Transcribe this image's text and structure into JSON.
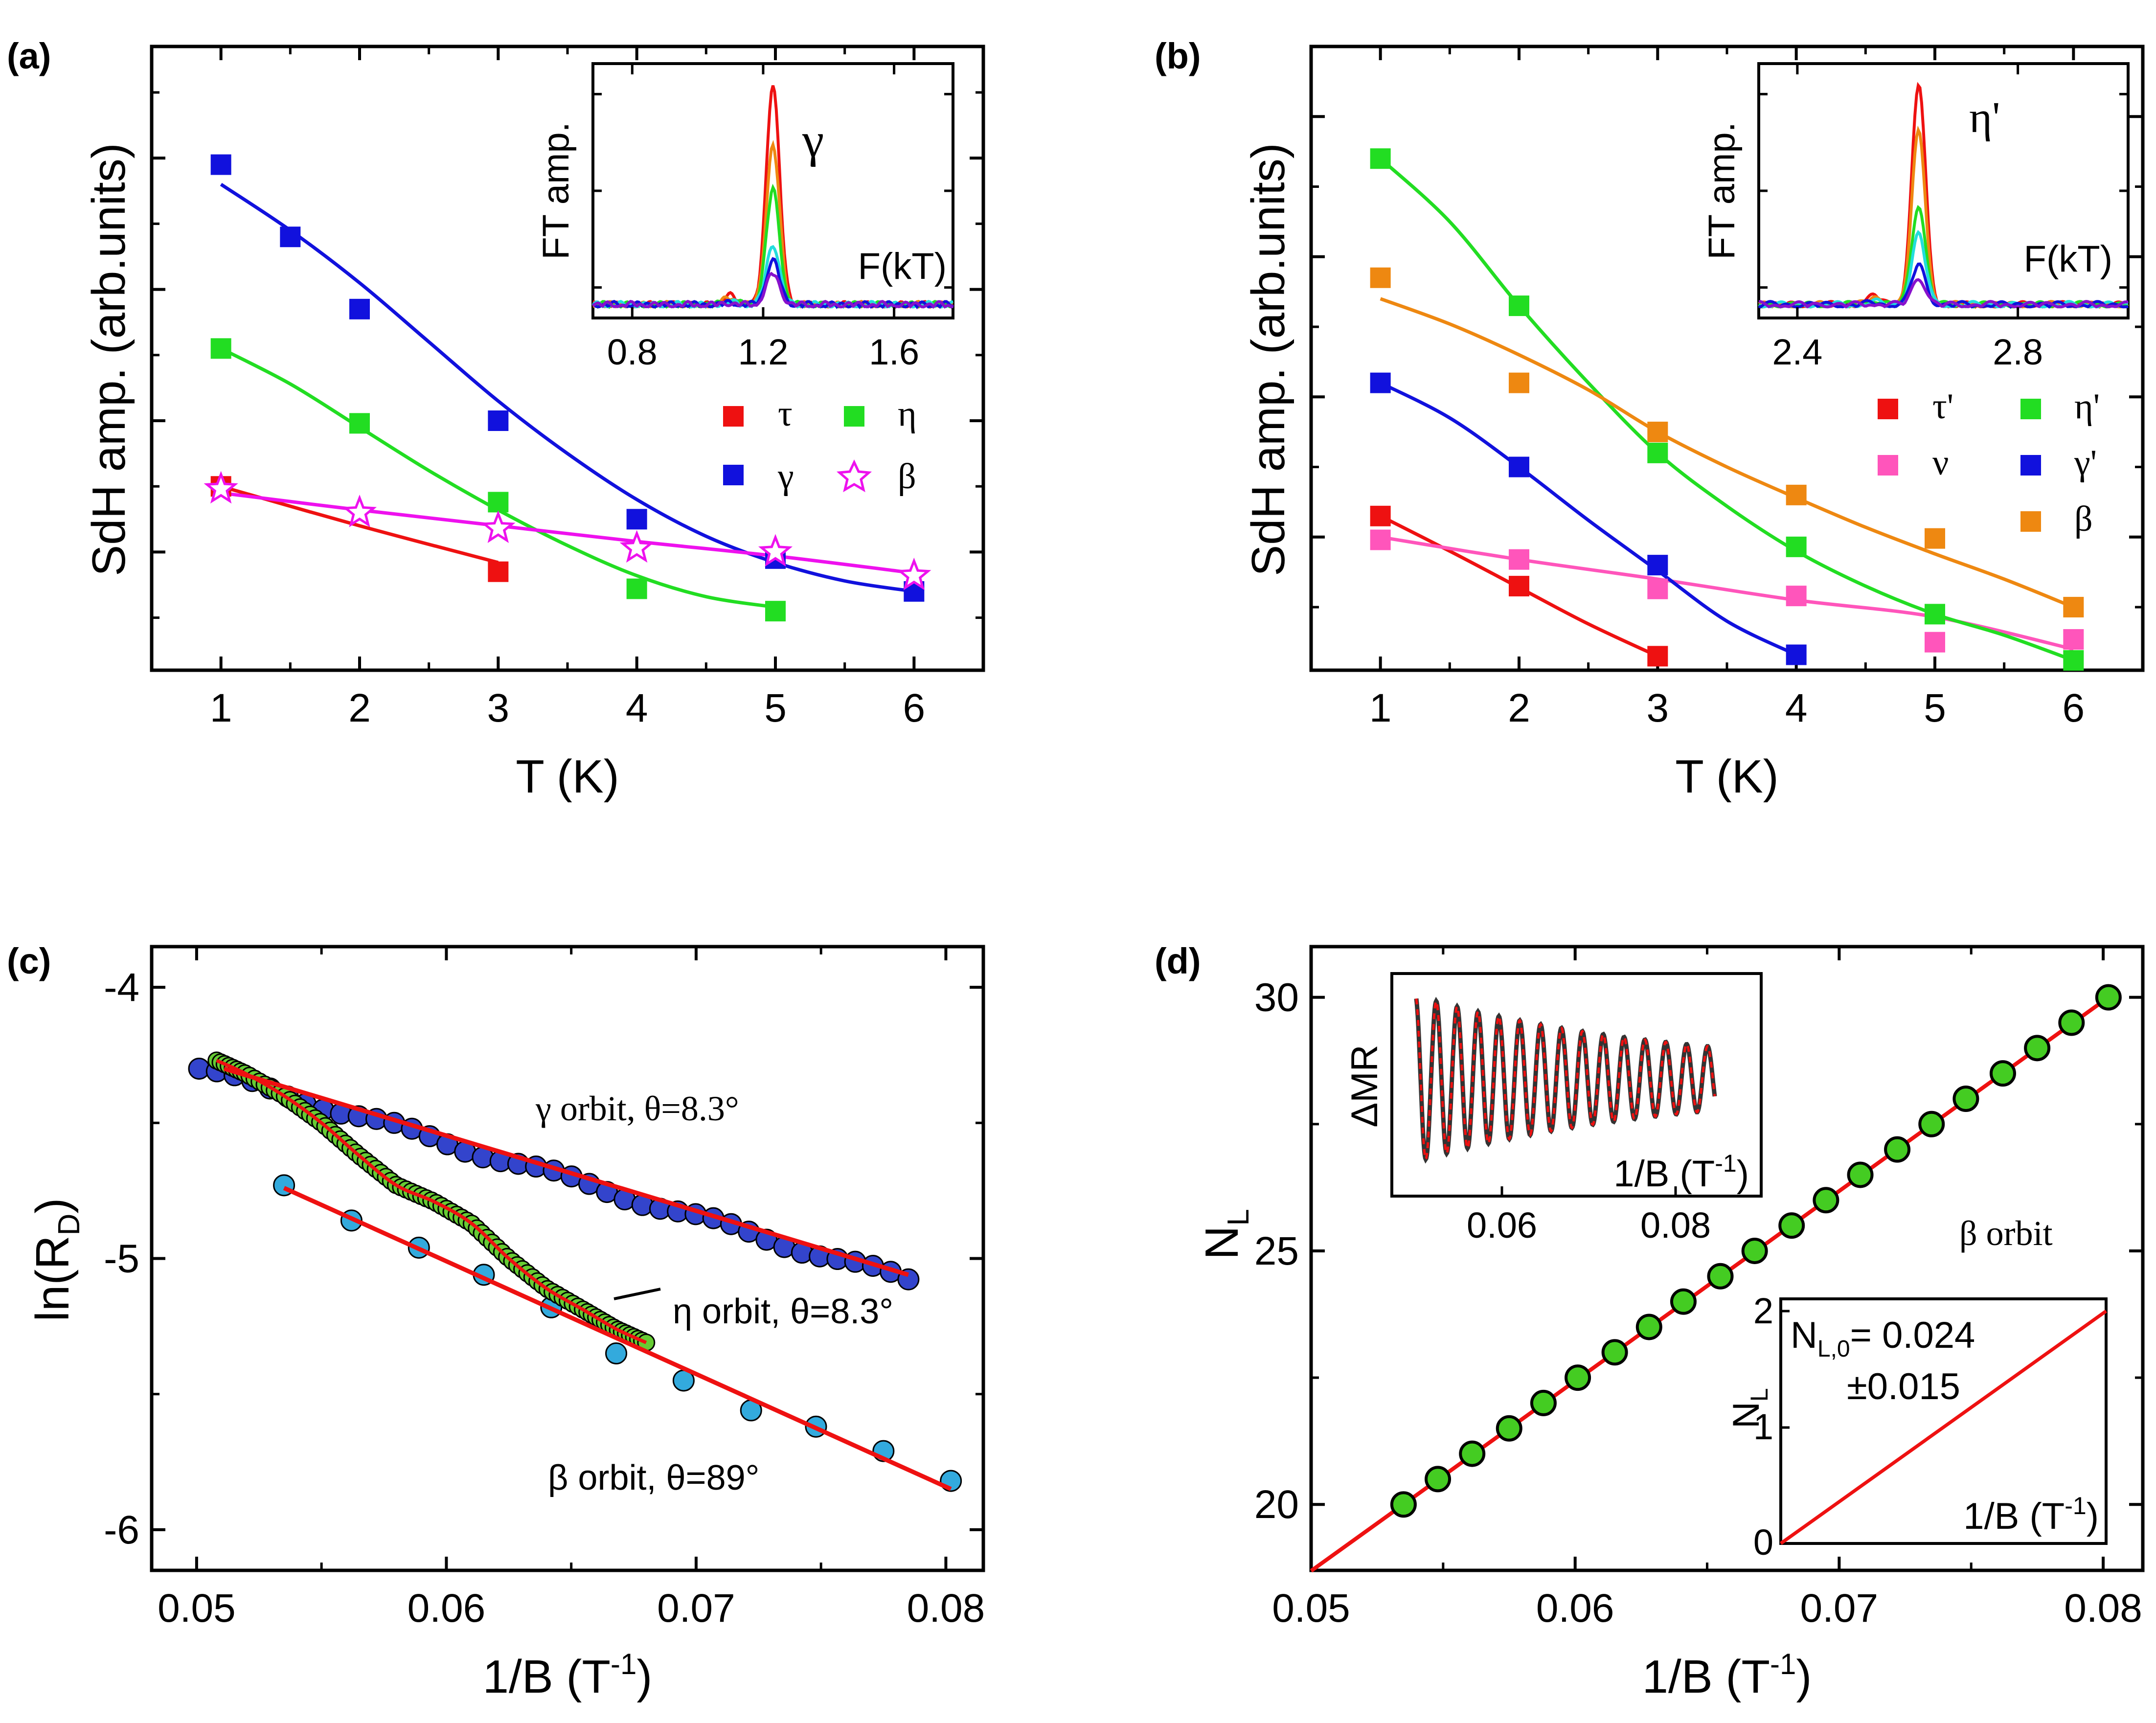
{
  "chart_data": [
    {
      "panel": "(a)",
      "type": "scatter",
      "xlabel": "T (K)",
      "ylabel": "SdH amp. (arb.units)",
      "xlim": [
        0.5,
        6.5
      ],
      "ylim": [
        0.1,
        4.85
      ],
      "xticks": [
        1,
        2,
        3,
        4,
        5,
        6
      ],
      "series": [
        {
          "name": "τ",
          "color": "#ee1111",
          "marker": "square",
          "x": [
            1,
            3
          ],
          "y": [
            1.5,
            0.85
          ],
          "fit": {
            "x": [
              1,
              2,
              3
            ],
            "y": [
              1.5,
              1.2,
              0.92
            ]
          }
        },
        {
          "name": "η",
          "color": "#22dd22",
          "marker": "square",
          "x": [
            1,
            2,
            3,
            4,
            5
          ],
          "y": [
            2.55,
            1.98,
            1.38,
            0.72,
            0.55
          ],
          "fit": {
            "x": [
              1,
              1.5,
              2,
              2.5,
              3,
              3.5,
              4,
              4.5,
              5
            ],
            "y": [
              2.55,
              2.28,
              1.95,
              1.62,
              1.32,
              1.05,
              0.82,
              0.66,
              0.58
            ]
          }
        },
        {
          "name": "γ",
          "color": "#1111dd",
          "marker": "square",
          "x": [
            1,
            1.5,
            2,
            3,
            4,
            5,
            6
          ],
          "y": [
            3.95,
            3.4,
            2.85,
            2.0,
            1.25,
            0.95,
            0.7
          ],
          "fit": {
            "x": [
              1,
              1.5,
              2,
              2.5,
              3,
              3.5,
              4,
              4.5,
              5,
              5.5,
              6
            ],
            "y": [
              3.8,
              3.45,
              3.05,
              2.6,
              2.15,
              1.75,
              1.4,
              1.12,
              0.92,
              0.78,
              0.7
            ]
          }
        },
        {
          "name": "β",
          "color": "#ee11ee",
          "marker": "star",
          "x": [
            1,
            2,
            3,
            4,
            5,
            6
          ],
          "y": [
            1.48,
            1.3,
            1.18,
            1.03,
            1.0,
            0.82
          ],
          "fit": {
            "x": [
              1,
              2,
              3,
              4,
              5,
              6
            ],
            "y": [
              1.45,
              1.32,
              1.2,
              1.08,
              0.97,
              0.84
            ]
          }
        }
      ],
      "inset": {
        "ylabel": "FT amp.",
        "xlabel": "F(kT)",
        "label": "γ",
        "xlim": [
          0.68,
          1.78
        ],
        "xticks": [
          0.8,
          1.2,
          1.6
        ],
        "ylim": [
          -0.05,
          1.1
        ],
        "peak_center": 1.23,
        "peak_heights": [
          1.0,
          0.72,
          0.52,
          0.27,
          0.2,
          0.14
        ],
        "colors": [
          "#ee1111",
          "#ee8811",
          "#22dd22",
          "#22dddd",
          "#1111dd",
          "#8811cc"
        ]
      }
    },
    {
      "panel": "(b)",
      "type": "scatter",
      "xlabel": "T (K)",
      "ylabel": "SdH amp. (arb.units)",
      "xlim": [
        0.5,
        6.5
      ],
      "ylim": [
        0.05,
        4.5
      ],
      "xticks": [
        1,
        2,
        3,
        4,
        5,
        6
      ],
      "series": [
        {
          "name": "τ'",
          "color": "#ee1111",
          "marker": "square",
          "x": [
            1,
            2,
            3
          ],
          "y": [
            1.15,
            0.65,
            0.15
          ],
          "fit": {
            "x": [
              1,
              1.5,
              2,
              2.5,
              3
            ],
            "y": [
              1.15,
              0.9,
              0.64,
              0.38,
              0.15
            ]
          }
        },
        {
          "name": "ν",
          "color": "#ff55bb",
          "marker": "square",
          "x": [
            1,
            2,
            3,
            4,
            5,
            6
          ],
          "y": [
            0.98,
            0.84,
            0.63,
            0.58,
            0.25,
            0.27
          ],
          "fit": {
            "x": [
              1,
              2,
              3,
              4,
              5,
              6
            ],
            "y": [
              1.0,
              0.84,
              0.7,
              0.55,
              0.43,
              0.2
            ]
          }
        },
        {
          "name": "η'",
          "color": "#22dd22",
          "marker": "square",
          "x": [
            1,
            2,
            3,
            4,
            5,
            6
          ],
          "y": [
            3.7,
            2.65,
            1.6,
            0.93,
            0.45,
            0.12
          ],
          "fit": {
            "x": [
              1,
              1.5,
              2,
              2.5,
              3,
              3.5,
              4,
              4.5,
              5,
              5.5,
              6
            ],
            "y": [
              3.7,
              3.25,
              2.65,
              2.1,
              1.6,
              1.22,
              0.9,
              0.65,
              0.45,
              0.3,
              0.12
            ]
          }
        },
        {
          "name": "γ'",
          "color": "#1111dd",
          "marker": "square",
          "x": [
            1,
            2,
            3,
            4
          ],
          "y": [
            2.1,
            1.5,
            0.8,
            0.16
          ],
          "fit": {
            "x": [
              1,
              1.5,
              2,
              2.5,
              3,
              3.5,
              4
            ],
            "y": [
              2.1,
              1.85,
              1.5,
              1.12,
              0.76,
              0.4,
              0.16
            ]
          }
        },
        {
          "name": "β",
          "color": "#ee8811",
          "marker": "square",
          "x": [
            1,
            2,
            3,
            4,
            5,
            6
          ],
          "y": [
            2.85,
            2.1,
            1.75,
            1.3,
            0.99,
            0.5
          ],
          "fit": {
            "x": [
              1,
              1.5,
              2,
              2.5,
              3,
              3.5,
              4,
              4.5,
              5,
              5.5,
              6
            ],
            "y": [
              2.7,
              2.52,
              2.3,
              2.05,
              1.75,
              1.5,
              1.28,
              1.07,
              0.88,
              0.7,
              0.5
            ]
          }
        }
      ],
      "inset": {
        "ylabel": "FT amp.",
        "xlabel": "F(kT)",
        "label": "η'",
        "xlim": [
          2.33,
          3.0
        ],
        "xticks": [
          2.4,
          2.8
        ],
        "ylim": [
          -0.05,
          1.1
        ],
        "peak_center": 2.62,
        "peak_heights": [
          1.0,
          0.78,
          0.45,
          0.32,
          0.18,
          0.12
        ],
        "colors": [
          "#ee1111",
          "#ee8811",
          "#22dd22",
          "#22dddd",
          "#1111dd",
          "#8811cc"
        ]
      }
    },
    {
      "panel": "(c)",
      "type": "scatter",
      "xlabel": "1/B (T⁻¹)",
      "ylabel": "ln(R_D)",
      "xlim": [
        0.0482,
        0.0815
      ],
      "ylim": [
        -6.15,
        -3.85
      ],
      "xticks": [
        0.05,
        0.06,
        0.07,
        0.08
      ],
      "xtick_labels": [
        "0.05",
        "0.06",
        "0.07",
        "0.08"
      ],
      "yticks": [
        -6,
        -5,
        -4
      ],
      "ytick_labels": [
        "-6",
        "-5",
        "-4"
      ],
      "series": [
        {
          "name": "γ orbit, θ=8.3°",
          "color": "#3344cc",
          "marker": "circle",
          "x_range": [
            0.0501,
            0.0785
          ],
          "n": 41,
          "fit": {
            "x": [
              0.0511,
              0.0785
            ],
            "y": [
              -4.3,
              -5.06
            ]
          }
        },
        {
          "name": "η orbit, θ=8.3°",
          "color": "#66cc33",
          "marker": "circle",
          "x": [
            0.0508,
            0.052,
            0.0535,
            0.055,
            0.0565,
            0.058,
            0.0595,
            0.061,
            0.0625,
            0.064,
            0.0655,
            0.0668,
            0.068
          ],
          "y": [
            -4.27,
            -4.32,
            -4.4,
            -4.5,
            -4.62,
            -4.73,
            -4.79,
            -4.87,
            -5.0,
            -5.11,
            -5.19,
            -5.26,
            -5.31
          ]
        },
        {
          "name": "β orbit, θ=89°",
          "color": "#33aadd",
          "marker": "circle",
          "x": [
            0.0535,
            0.0562,
            0.0589,
            0.0615,
            0.0642,
            0.0668,
            0.0695,
            0.0722,
            0.0748,
            0.0775,
            0.0802
          ],
          "y": [
            -4.73,
            -4.86,
            -4.96,
            -5.06,
            -5.18,
            -5.35,
            -5.45,
            -5.56,
            -5.62,
            -5.71,
            -5.82
          ],
          "fit": {
            "x": [
              0.0535,
              0.0802
            ],
            "y": [
              -4.74,
              -5.85
            ]
          }
        }
      ],
      "annotations": [
        "γ orbit, θ=8.3°",
        "η orbit, θ=8.3°",
        "β orbit, θ=89°"
      ]
    },
    {
      "panel": "(d)",
      "type": "scatter",
      "xlabel": "1/B (T⁻¹)",
      "ylabel": "N_L",
      "xlim": [
        0.05,
        0.0815
      ],
      "ylim": [
        18.7,
        31.0
      ],
      "xticks": [
        0.05,
        0.06,
        0.07,
        0.08
      ],
      "xtick_labels": [
        "0.05",
        "0.06",
        "0.07",
        "0.08"
      ],
      "yticks": [
        20,
        25,
        30
      ],
      "ytick_labels": [
        "20",
        "25",
        "30"
      ],
      "series": [
        {
          "name": "β orbit",
          "color": "#44cc22",
          "marker": "circle",
          "x": [
            0.0535,
            0.0548,
            0.0561,
            0.0575,
            0.0588,
            0.0601,
            0.0615,
            0.0628,
            0.0641,
            0.0655,
            0.0668,
            0.0682,
            0.0695,
            0.0708,
            0.0722,
            0.0735,
            0.0748,
            0.0762,
            0.0775,
            0.0788,
            0.0802
          ],
          "y": [
            20.0,
            20.5,
            21.0,
            21.5,
            22.0,
            22.5,
            23.0,
            23.5,
            24.0,
            24.5,
            25.0,
            25.5,
            26.0,
            26.5,
            27.0,
            27.5,
            28.0,
            28.5,
            29.0,
            29.5,
            30.0
          ],
          "fit": {
            "x": [
              0.05,
              0.0802
            ],
            "y": [
              18.69,
              30.0
            ]
          }
        }
      ],
      "annotations": [
        "β orbit"
      ],
      "inset_top": {
        "ylabel": "ΔMR",
        "xlabel": "1/B (T⁻¹)",
        "xticks": [
          "0.06",
          "0.08"
        ]
      },
      "inset_bottom": {
        "ylabel": "N_L",
        "xlabel": "1/B (T⁻¹)",
        "yticks": [
          "0",
          "1",
          "2"
        ],
        "note_line1": "N_L,0= 0.024",
        "note_line2": "±0.015"
      }
    }
  ],
  "labels": {
    "a": "(a)",
    "b": "(b)",
    "c": "(c)",
    "d": "(d)",
    "a_xlabel": "T (K)",
    "b_xlabel": "T (K)",
    "ab_ylabel": "SdH amp. (arb.units)",
    "c_ylabel_main": "ln(R",
    "c_ylabel_sub": "D",
    "c_ylabel_end": ")",
    "cd_xlabel_main": "1/B (T",
    "cd_xlabel_sup": "-1",
    "cd_xlabel_end": ")",
    "d_ylabel_main": "N",
    "d_ylabel_sub": "L",
    "inset_ft": "FT amp.",
    "inset_fk": "F(kT)",
    "a_inset_label": "γ",
    "b_inset_label": "η'",
    "c_gamma": "γ orbit, θ=8.3°",
    "c_eta": "η orbit, θ=8.3°",
    "c_beta": "β orbit, θ=89°",
    "d_beta": "β orbit",
    "d_inset_dmr": "ΔMR",
    "d_inset_note1_main": "N",
    "d_inset_note1_sub": "L,0",
    "d_inset_note1_end": "= 0.024",
    "d_inset_note2": "±0.015",
    "d_inset_tick_006": "0.06",
    "d_inset_tick_008": "0.08",
    "d_inset_y0": "0",
    "d_inset_y1": "1",
    "d_inset_y2": "2"
  }
}
